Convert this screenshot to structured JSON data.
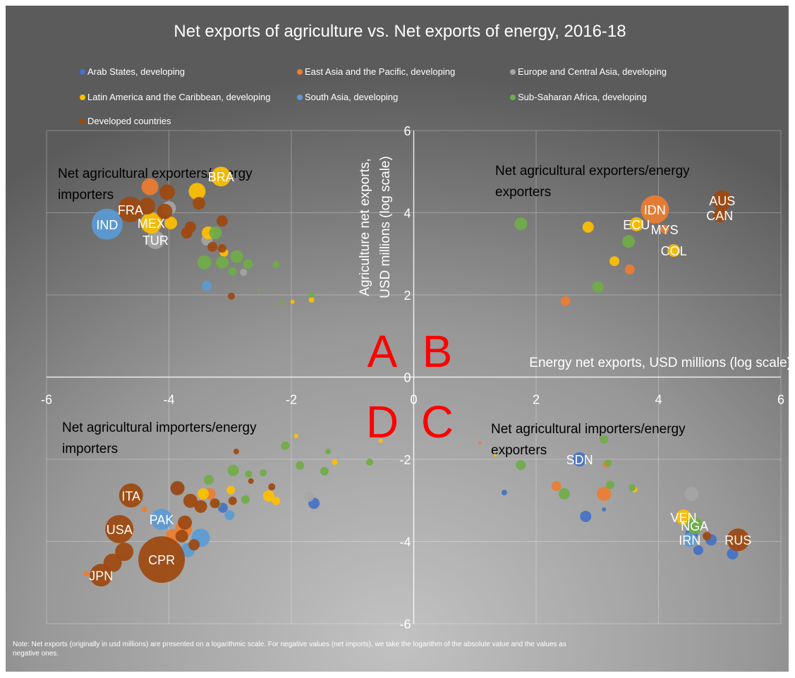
{
  "chart_data": {
    "type": "bubble",
    "title": "Net exports of agriculture vs. Net exports of energy, 2016-18",
    "x_label": "Energy net exports, USD millions (log scale)",
    "y_label": [
      "Agriculture net exports,",
      "USD millions (log scale)"
    ],
    "xlim": [
      -6,
      6
    ],
    "ylim": [
      -6,
      6
    ],
    "xticks": [
      -6,
      -4,
      -2,
      0,
      2,
      4,
      6
    ],
    "yticks": [
      -6,
      -4,
      -2,
      0,
      2,
      4,
      6
    ],
    "grid": true,
    "quadrant_labels": [
      [
        "Net agricultural exporters/energy",
        "importers"
      ],
      [
        "Net agricultural exporters/energy",
        "exporters"
      ],
      [
        "Net agricultural importers/energy",
        "importers"
      ],
      [
        "Net agricultural importers/energy",
        "exporters"
      ]
    ],
    "quadrant_letters": [
      "A",
      "B",
      "C",
      "D"
    ],
    "note": [
      "Note: Net exports (originally in usd millions) are presented on a logarithmic scale. For negative values (net imports), we take the logarithm of the absolute value and the values as",
      "negative ones."
    ],
    "series": [
      {
        "name": "Arab States, developing",
        "color": "#4472c4",
        "x": [
          2.71,
          -3.87,
          -1.63,
          -3.12,
          2.81,
          4.54,
          4.86,
          4.65,
          5.21,
          1.48,
          3.11
        ],
        "y": [
          -2.0,
          -2.72,
          -3.07,
          -3.18,
          -3.39,
          -3.82,
          -3.96,
          -4.21,
          -4.3,
          -2.81,
          -3.22
        ],
        "sizes": [
          10,
          9,
          8,
          7,
          8,
          9,
          8,
          7,
          8,
          4,
          3
        ],
        "labels": [
          "SDN",
          null,
          null,
          null,
          null,
          null,
          null,
          null,
          null,
          null,
          null
        ]
      },
      {
        "name": "East Asia and the Pacific, developing",
        "color": "#ed7d31",
        "x": [
          3.94,
          4.1,
          -4.31,
          3.53,
          2.48,
          -3.76,
          -3.94,
          -4.4,
          -5.35,
          -3.33,
          2.33,
          3.11,
          3.15,
          1.08
        ],
        "y": [
          4.08,
          3.6,
          4.63,
          2.62,
          1.85,
          -3.7,
          -3.87,
          -3.22,
          -4.78,
          -2.84,
          -2.65,
          -2.84,
          -2.12,
          -1.6
        ],
        "sizes": [
          20,
          6,
          12,
          7,
          7,
          12,
          10,
          4,
          4,
          8,
          7,
          10,
          5,
          2
        ],
        "labels": [
          "IDN",
          "MYS",
          null,
          null,
          null,
          null,
          null,
          null,
          null,
          null,
          null,
          null,
          null,
          null
        ]
      },
      {
        "name": "Europe and Central Asia, developing",
        "color": "#a5a5a5",
        "x": [
          -4.22,
          -4.0,
          -3.38,
          -2.78,
          -1.71,
          -2.71,
          4.54
        ],
        "y": [
          3.34,
          4.11,
          3.34,
          2.55,
          -2.91,
          -2.84,
          -2.84
        ],
        "sizes": [
          13,
          10,
          8,
          5,
          7,
          5,
          10
        ],
        "labels": [
          "TUR",
          null,
          null,
          null,
          null,
          null,
          null
        ]
      },
      {
        "name": "Latin America and the Caribbean, developing",
        "color": "#ffc000",
        "x": [
          -3.15,
          -4.29,
          3.64,
          4.25,
          4.41,
          -3.54,
          -3.97,
          -3.36,
          -3.1,
          -1.98,
          -1.67,
          2.85,
          3.28,
          -3.44,
          -2.99,
          -2.37,
          -2.25,
          -1.29,
          -0.54,
          -1.92,
          1.33,
          3.61
        ],
        "y": [
          4.88,
          3.75,
          3.72,
          3.08,
          -3.41,
          4.52,
          3.75,
          3.51,
          3.03,
          1.83,
          1.88,
          3.65,
          2.82,
          -2.84,
          -2.75,
          -2.89,
          -3.01,
          -2.07,
          -1.55,
          -1.43,
          -1.9,
          -2.74
        ],
        "sizes": [
          14,
          15,
          10,
          9,
          11,
          12,
          9,
          9,
          6,
          3,
          4,
          8,
          7,
          8,
          6,
          8,
          6,
          4,
          3,
          3,
          2,
          4
        ],
        "labels": [
          "BRA",
          "MEX",
          "ECU",
          "COL",
          "VEN",
          null,
          null,
          null,
          null,
          null,
          null,
          null,
          null,
          null,
          null,
          null,
          null,
          null,
          null,
          null,
          null,
          null
        ]
      },
      {
        "name": "South Asia, developing",
        "color": "#5b9bd5",
        "x": [
          -5.01,
          -4.12,
          4.51,
          -3.38,
          -3.69,
          -3.48,
          -3.01
        ],
        "y": [
          3.72,
          -3.46,
          -3.96,
          2.22,
          -4.21,
          -3.91,
          -3.36
        ],
        "sizes": [
          22,
          15,
          10,
          7,
          10,
          13,
          7
        ],
        "labels": [
          "IND",
          "PAK",
          "IRN",
          null,
          null,
          null,
          null
        ]
      },
      {
        "name": "Sub-Saharan Africa, developing",
        "color": "#70ad47",
        "x": [
          4.59,
          -3.24,
          -3.42,
          -3.13,
          -2.89,
          -2.96,
          -2.71,
          -2.25,
          -1.67,
          -2.15,
          -2.53,
          1.75,
          3.51,
          3.01,
          -2.95,
          -3.35,
          -2.7,
          -2.46,
          -2.1,
          -1.86,
          -1.46,
          -1.4,
          -0.72,
          -2.75,
          -3.21,
          3.11,
          1.75,
          2.46,
          3.18,
          3.21,
          3.57
        ],
        "y": [
          -3.61,
          3.51,
          2.79,
          2.79,
          2.93,
          2.57,
          2.75,
          2.74,
          2.0,
          1.81,
          2.1,
          3.73,
          3.3,
          2.19,
          -2.27,
          -2.5,
          -2.36,
          -2.33,
          -1.67,
          -2.15,
          -2.29,
          -1.81,
          -2.07,
          -2.98,
          -3.1,
          -1.52,
          -2.14,
          -2.84,
          -2.09,
          -2.62,
          -2.69
        ],
        "sizes": [
          12,
          9,
          10,
          9,
          9,
          6,
          7,
          5,
          4,
          3,
          2,
          9,
          9,
          8,
          8,
          7,
          5,
          5,
          6,
          6,
          6,
          4,
          5,
          6,
          5,
          6,
          7,
          8,
          5,
          6,
          5
        ],
        "labels": [
          "NGA",
          null,
          null,
          null,
          null,
          null,
          null,
          null,
          null,
          null,
          null,
          null,
          null,
          null,
          null,
          null,
          null,
          null,
          null,
          null,
          null,
          null,
          null,
          null,
          null,
          null,
          null,
          null,
          null,
          null,
          null
        ]
      },
      {
        "name": "Developed countries",
        "color": "#9e480e",
        "x": [
          -4.63,
          5.04,
          5.0,
          -4.62,
          -4.81,
          -4.12,
          -5.11,
          5.3,
          -4.03,
          -4.07,
          -3.51,
          -3.13,
          -3.65,
          -3.71,
          -3.29,
          -3.13,
          -2.98,
          -4.36,
          -3.86,
          -3.65,
          -3.48,
          -3.74,
          -3.79,
          -3.59,
          -4.73,
          -4.92,
          -3.25,
          -2.96,
          -2.9,
          -2.32,
          -2.66,
          4.79
        ],
        "y": [
          4.08,
          4.3,
          3.94,
          -2.88,
          -3.7,
          -4.44,
          -4.82,
          -3.96,
          4.5,
          4.03,
          4.23,
          3.8,
          3.65,
          3.51,
          3.17,
          3.13,
          1.97,
          4.16,
          -2.7,
          -3.01,
          -3.15,
          -3.54,
          -3.87,
          -4.08,
          -4.25,
          -4.52,
          -3.07,
          -3.01,
          -1.81,
          -2.67,
          -2.53,
          -3.87
        ],
        "sizes": [
          18,
          14,
          10,
          17,
          20,
          33,
          16,
          16,
          11,
          11,
          9,
          8,
          8,
          8,
          7,
          6,
          5,
          12,
          10,
          10,
          9,
          10,
          9,
          8,
          13,
          13,
          7,
          6,
          4,
          5,
          4,
          6
        ],
        "labels": [
          "FRA",
          "AUS",
          "CAN",
          "ITA",
          "USA",
          "CPR",
          "JPN",
          "RUS",
          null,
          null,
          null,
          null,
          null,
          null,
          null,
          null,
          null,
          null,
          null,
          null,
          null,
          null,
          null,
          null,
          null,
          null,
          null,
          null,
          null,
          null,
          null,
          null
        ]
      }
    ]
  }
}
